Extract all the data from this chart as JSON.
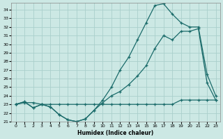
{
  "xlabel": "Humidex (Indice chaleur)",
  "bg_color": "#cce8e4",
  "grid_color": "#aacfcc",
  "line_color": "#1a6b6a",
  "xlim": [
    -0.5,
    23.5
  ],
  "ylim": [
    21,
    34.8
  ],
  "x_ticks": [
    0,
    1,
    2,
    3,
    4,
    5,
    6,
    7,
    8,
    9,
    10,
    11,
    12,
    13,
    14,
    15,
    16,
    17,
    18,
    19,
    20,
    21,
    22,
    23
  ],
  "y_ticks": [
    21,
    22,
    23,
    24,
    25,
    26,
    27,
    28,
    29,
    30,
    31,
    32,
    33,
    34
  ],
  "line1_x": [
    0,
    1,
    2,
    3,
    4,
    5,
    6,
    7,
    8,
    9,
    10,
    11,
    12,
    13,
    14,
    15,
    16,
    17,
    18,
    19,
    20,
    21,
    22,
    23
  ],
  "line1_y": [
    23.0,
    23.3,
    22.6,
    23.0,
    22.7,
    21.8,
    21.2,
    21.0,
    21.3,
    22.3,
    23.2,
    24.0,
    24.5,
    25.3,
    26.3,
    27.5,
    29.5,
    31.0,
    30.5,
    31.5,
    31.5,
    31.8,
    25.5,
    23.5
  ],
  "line2_x": [
    0,
    1,
    2,
    3,
    4,
    5,
    6,
    7,
    8,
    9,
    10,
    11,
    12,
    13,
    14,
    15,
    16,
    17,
    18,
    19,
    20,
    21,
    22,
    23
  ],
  "line2_y": [
    23.0,
    23.3,
    22.6,
    23.0,
    22.7,
    21.8,
    21.2,
    21.0,
    21.3,
    22.3,
    23.5,
    25.0,
    27.0,
    28.5,
    30.5,
    32.5,
    34.5,
    34.7,
    33.5,
    32.5,
    32.0,
    32.0,
    26.5,
    24.0
  ],
  "line3_x": [
    0,
    1,
    2,
    3,
    4,
    5,
    6,
    7,
    8,
    9,
    10,
    11,
    12,
    13,
    14,
    15,
    16,
    17,
    18,
    19,
    20,
    21,
    22,
    23
  ],
  "line3_y": [
    23.0,
    23.2,
    23.2,
    23.0,
    23.0,
    23.0,
    23.0,
    23.0,
    23.0,
    23.0,
    23.0,
    23.0,
    23.0,
    23.0,
    23.0,
    23.0,
    23.0,
    23.0,
    23.0,
    23.5,
    23.5,
    23.5,
    23.5,
    23.5
  ]
}
